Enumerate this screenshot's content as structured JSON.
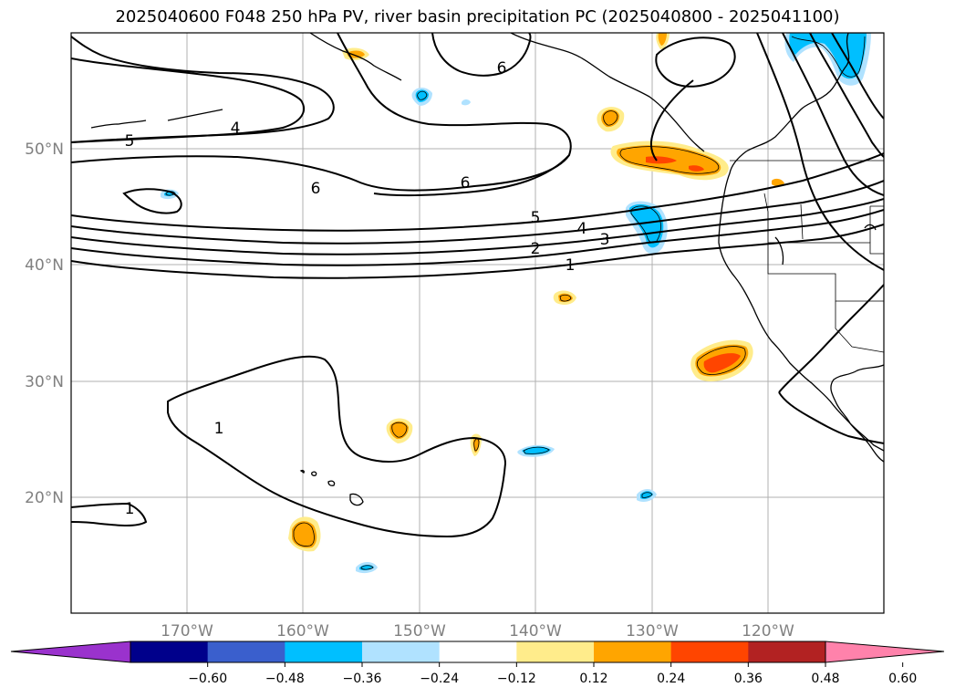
{
  "title": "2025040600 F048 250 hPa PV, river basin precipitation PC (2025040800 - 2025041100)",
  "map": {
    "lon_range": [
      -180,
      -110
    ],
    "lat_range": [
      10,
      60
    ],
    "lon_ticks": [
      "170°W",
      "160°W",
      "150°W",
      "140°W",
      "130°W",
      "120°W"
    ],
    "lat_ticks": [
      "50°N",
      "40°N",
      "30°N",
      "20°N"
    ],
    "gridlines": true,
    "contour_labels": [
      "6",
      "4",
      "5",
      "6",
      "6",
      "5",
      "4",
      "3",
      "2",
      "1",
      "1",
      "1"
    ]
  },
  "colorbar": {
    "ticks": [
      "−0.60",
      "−0.48",
      "−0.36",
      "−0.24",
      "−0.12",
      "0.12",
      "0.24",
      "0.36",
      "0.48",
      "0.60"
    ],
    "colors": [
      "#9a32cd",
      "#00008b",
      "#3a5fcd",
      "#00bfff",
      "#b0e2ff",
      "#ffffff",
      "#ffec8b",
      "#ffa500",
      "#ff4500",
      "#b22222",
      "#ff82ab"
    ]
  }
}
